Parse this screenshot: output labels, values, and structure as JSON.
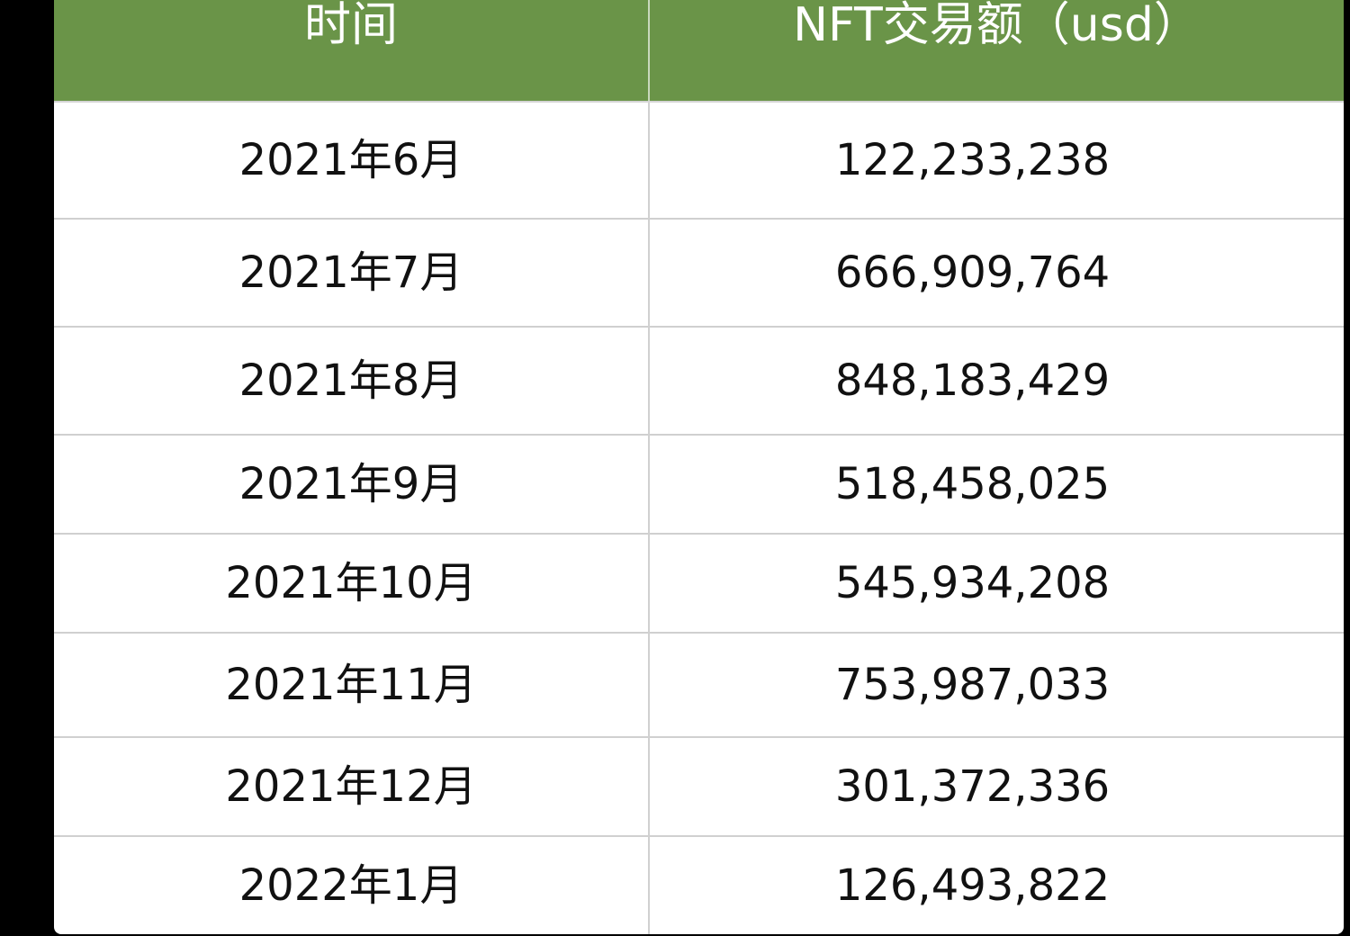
{
  "table": {
    "headers": [
      "时间",
      "NFT交易额（usd）"
    ],
    "rows": [
      {
        "time": "2021年6月",
        "amount": "122,233,238"
      },
      {
        "time": "2021年7月",
        "amount": "666,909,764"
      },
      {
        "time": "2021年8月",
        "amount": "848,183,429"
      },
      {
        "time": "2021年9月",
        "amount": "518,458,025"
      },
      {
        "time": "2021年10月",
        "amount": "545,934,208"
      },
      {
        "time": "2021年11月",
        "amount": "753,987,033"
      },
      {
        "time": "2021年12月",
        "amount": "301,372,336"
      },
      {
        "time": "2022年1月",
        "amount": "126,493,822"
      }
    ]
  },
  "colors": {
    "header_bg": "#6a9448",
    "header_text": "#ffffff",
    "body_bg": "#ffffff",
    "page_bg": "#000000"
  }
}
